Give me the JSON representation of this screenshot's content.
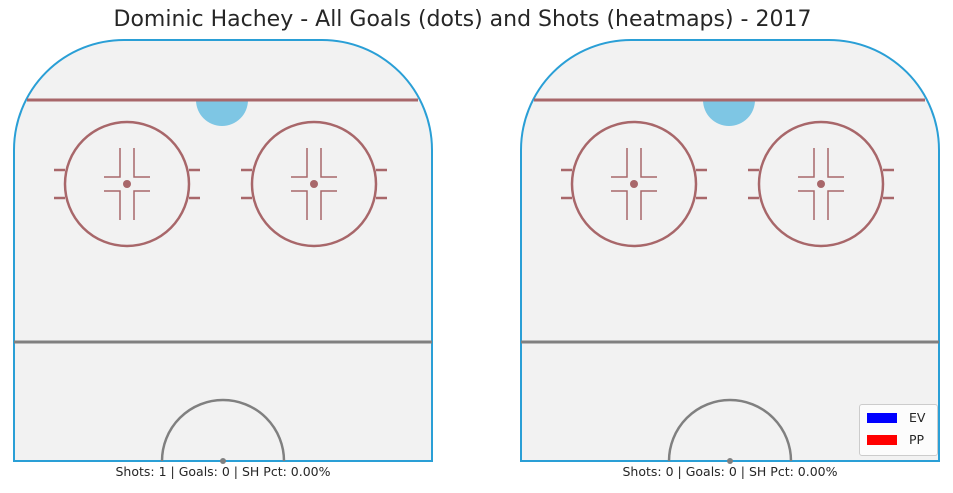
{
  "title": "Dominic Hachey - All Goals (dots) and Shots (heatmaps) - 2017",
  "chart_data": [
    {
      "type": "heatmap",
      "panel": "left",
      "caption": "Shots: 1 | Goals: 0 | SH Pct: 0.00%",
      "shots": 1,
      "goals": 0,
      "sh_pct": "0.00%",
      "goal_points": [],
      "shot_heatmap_values": []
    },
    {
      "type": "heatmap",
      "panel": "right",
      "caption": "Shots: 0 | Goals: 0 | SH Pct: 0.00%",
      "shots": 0,
      "goals": 0,
      "sh_pct": "0.00%",
      "goal_points": [],
      "shot_heatmap_values": []
    }
  ],
  "legend": {
    "placement": "lower-right",
    "items": [
      {
        "label": "EV",
        "color": "#0000ff"
      },
      {
        "label": "PP",
        "color": "#ff0000"
      }
    ]
  },
  "colors": {
    "rink_fill": "#f2f2f2",
    "boards": "#2a9fd6",
    "red_line": "#a8676a",
    "blue_line": "#808080",
    "crease": "#7ec6e4"
  }
}
